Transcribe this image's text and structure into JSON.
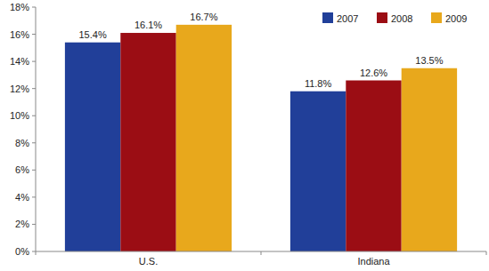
{
  "chart_data": {
    "type": "bar",
    "categories": [
      "U.S.",
      "Indiana"
    ],
    "series": [
      {
        "name": "2007",
        "color": "#213f99",
        "values": [
          15.4,
          11.8
        ],
        "value_labels": [
          "15.4%",
          "11.8%"
        ]
      },
      {
        "name": "2008",
        "color": "#9b0d14",
        "values": [
          16.1,
          12.6
        ],
        "value_labels": [
          "16.1%",
          "12.6%"
        ]
      },
      {
        "name": "2009",
        "color": "#e8a81c",
        "values": [
          16.7,
          13.5
        ],
        "value_labels": [
          "16.7%",
          "13.5%"
        ]
      }
    ],
    "ylim": [
      0,
      18
    ],
    "yticks": [
      {
        "value": 0,
        "label": "0%"
      },
      {
        "value": 2,
        "label": "2%"
      },
      {
        "value": 4,
        "label": "4%"
      },
      {
        "value": 6,
        "label": "6%"
      },
      {
        "value": 8,
        "label": "8%"
      },
      {
        "value": 10,
        "label": "10%"
      },
      {
        "value": 12,
        "label": "12%"
      },
      {
        "value": 14,
        "label": "14%"
      },
      {
        "value": 16,
        "label": "16%"
      },
      {
        "value": 18,
        "label": "18%"
      }
    ],
    "data_labels": true,
    "legend": "upper right",
    "grid": false
  }
}
